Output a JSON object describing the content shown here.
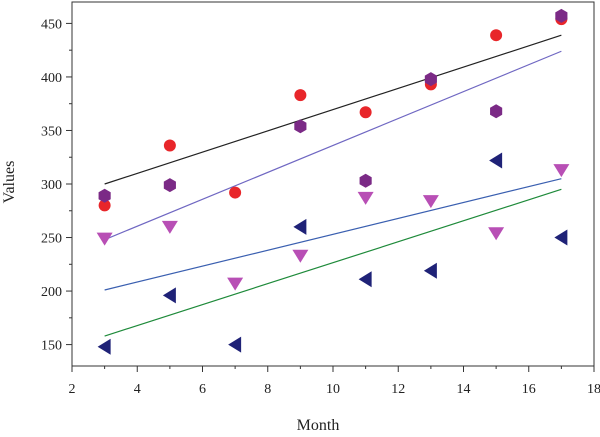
{
  "chart_data": {
    "type": "scatter",
    "title": "",
    "xlabel": "Month",
    "ylabel": "Values",
    "xlim": [
      2,
      18
    ],
    "ylim": [
      130,
      470
    ],
    "x_ticks": [
      2,
      4,
      6,
      8,
      10,
      12,
      14,
      16,
      18
    ],
    "y_ticks": [
      150,
      200,
      250,
      300,
      350,
      400,
      450
    ],
    "grid": false,
    "legend": "none",
    "series": [
      {
        "marker": "circle",
        "color": "#e8262a",
        "x": [
          3,
          5,
          7,
          9,
          11,
          13,
          15,
          17
        ],
        "y": [
          280,
          336,
          292,
          383,
          367,
          393,
          439,
          454
        ]
      },
      {
        "marker": "hexagon",
        "color": "#7b2a86",
        "x": [
          3,
          5,
          9,
          11,
          13,
          15,
          17
        ],
        "y": [
          289,
          299,
          354,
          303,
          398,
          368,
          457
        ]
      },
      {
        "marker": "triangle-down",
        "color": "#b84fb5",
        "x": [
          3,
          5,
          7,
          9,
          11,
          13,
          15,
          17
        ],
        "y": [
          249,
          260,
          207,
          233,
          287,
          284,
          254,
          313
        ]
      },
      {
        "marker": "triangle-left",
        "color": "#1f2277",
        "x": [
          3,
          5,
          7,
          9,
          11,
          13,
          15,
          17
        ],
        "y": [
          148,
          196,
          150,
          260,
          211,
          219,
          322,
          250
        ]
      }
    ],
    "trend_lines": [
      {
        "color": "#222222",
        "x": [
          3,
          17
        ],
        "y": [
          300,
          439
        ]
      },
      {
        "color": "#6f67c2",
        "x": [
          3,
          17
        ],
        "y": [
          248,
          424
        ]
      },
      {
        "color": "#3a5fb0",
        "x": [
          3,
          17
        ],
        "y": [
          201,
          305
        ]
      },
      {
        "color": "#1e8a3a",
        "x": [
          3,
          17
        ],
        "y": [
          158,
          295
        ]
      }
    ]
  }
}
